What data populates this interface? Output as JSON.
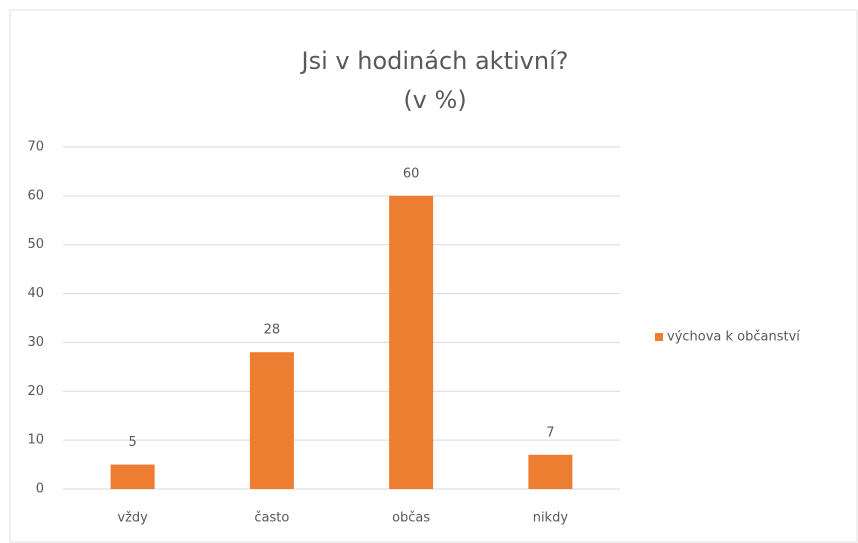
{
  "chart_data": {
    "type": "bar",
    "title": "Jsi v hodinách aktivní?",
    "subtitle": "(v %)",
    "categories": [
      "vždy",
      "často",
      "občas",
      "nikdy"
    ],
    "series": [
      {
        "name": "výchova k občanství",
        "color": "#ed7d31",
        "values": [
          5,
          28,
          60,
          7
        ]
      }
    ],
    "ylim": [
      0,
      70
    ],
    "yticks": [
      0,
      10,
      20,
      30,
      40,
      50,
      60,
      70
    ],
    "grid": true,
    "legend": "right"
  }
}
